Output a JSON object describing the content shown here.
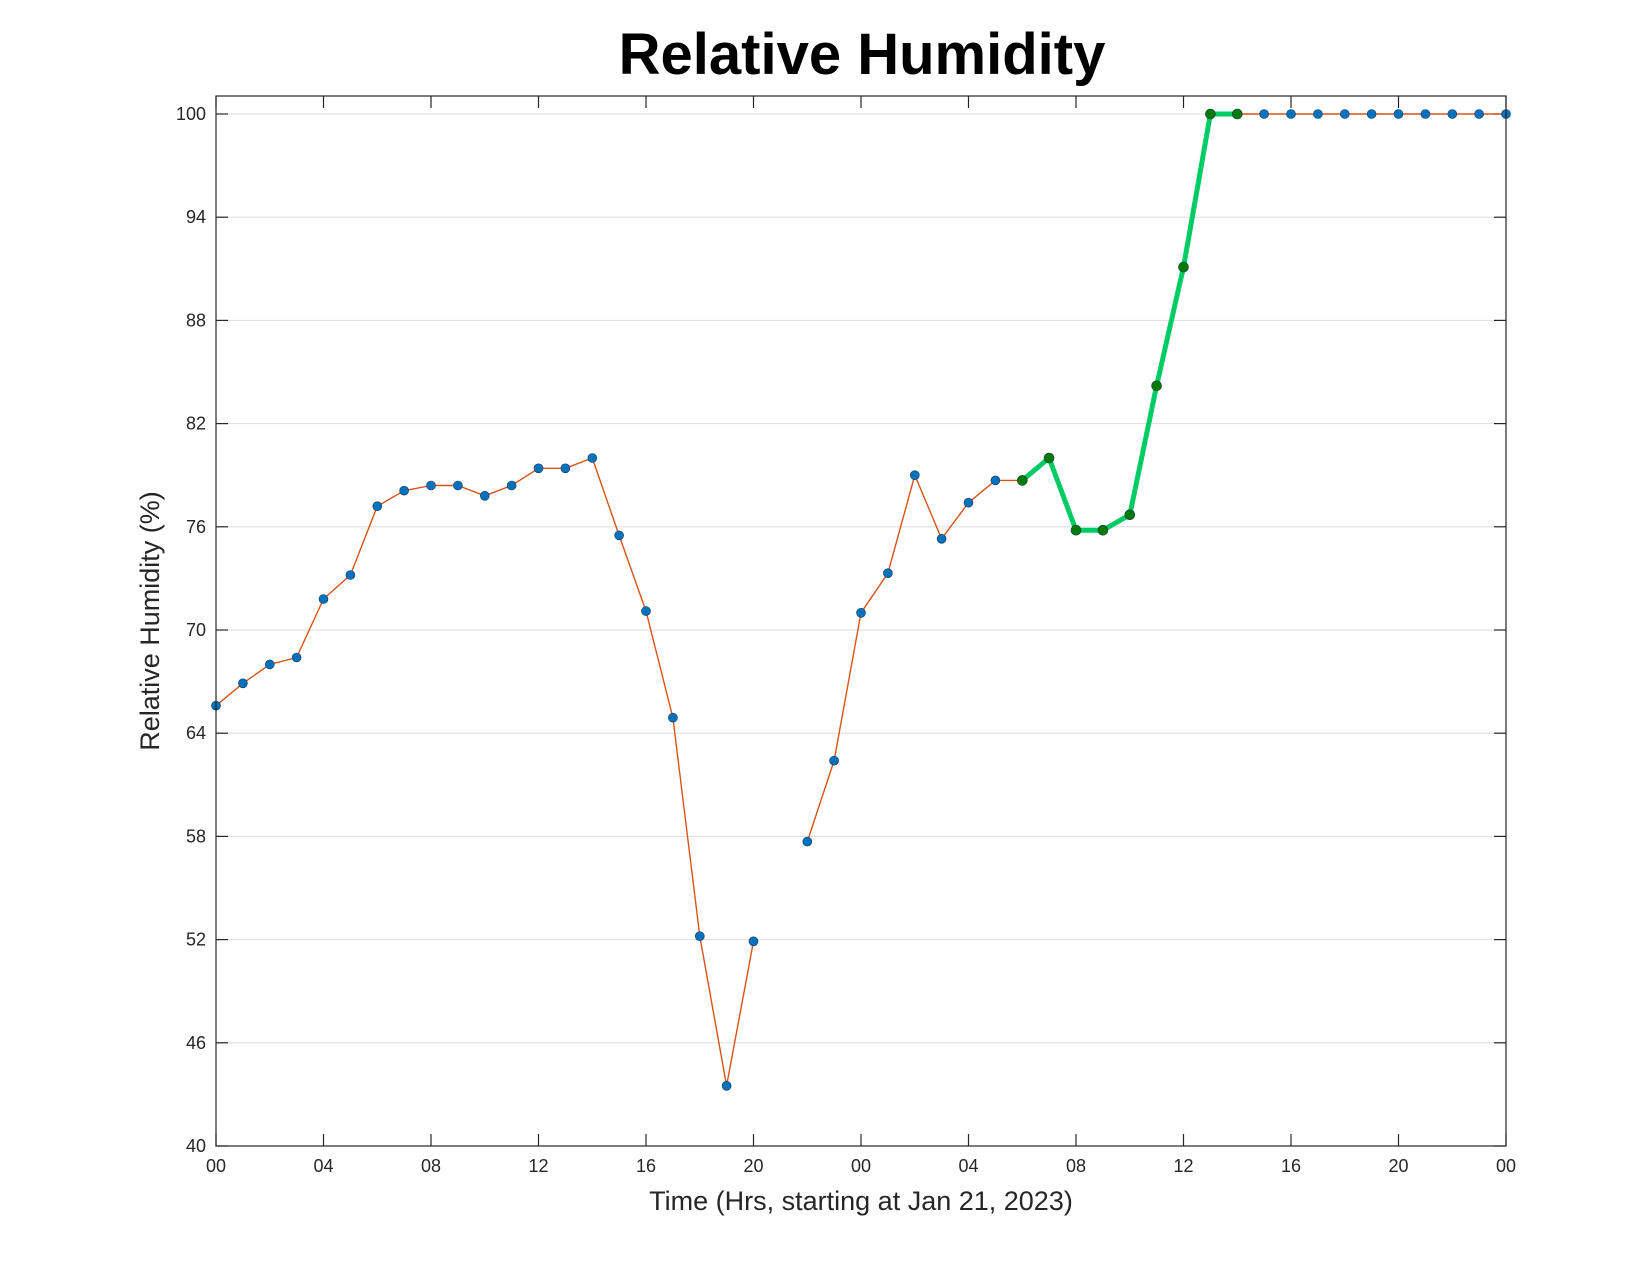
{
  "chart_data": {
    "type": "line",
    "title": "Relative Humidity",
    "xlabel": "Time (Hrs, starting at Jan 21, 2023)",
    "ylabel": "Relative Humidity (%)",
    "xlim": [
      0,
      48
    ],
    "ylim": [
      40,
      100
    ],
    "grid": "horizontal",
    "x_ticks": [
      0,
      4,
      8,
      12,
      16,
      20,
      24,
      28,
      32,
      36,
      40,
      44,
      48
    ],
    "x_tick_labels": [
      "00",
      "04",
      "08",
      "12",
      "16",
      "20",
      "00",
      "04",
      "08",
      "12",
      "16",
      "20",
      "00"
    ],
    "y_ticks": [
      40,
      46,
      52,
      58,
      64,
      70,
      76,
      82,
      88,
      94,
      100
    ],
    "y_tick_labels": [
      "40",
      "46",
      "52",
      "58",
      "64",
      "70",
      "76",
      "82",
      "88",
      "94",
      "100"
    ],
    "x": [
      0,
      1,
      2,
      3,
      4,
      5,
      6,
      7,
      8,
      9,
      10,
      11,
      12,
      13,
      14,
      15,
      16,
      17,
      18,
      19,
      20,
      21,
      22,
      23,
      24,
      25,
      26,
      27,
      28,
      29,
      30,
      31,
      32,
      33,
      34,
      35,
      36,
      37,
      38,
      39,
      40,
      41,
      42,
      43,
      44,
      45,
      46,
      47,
      48
    ],
    "series": [
      {
        "values": [
          65.6,
          66.9,
          68.0,
          68.4,
          71.8,
          73.2,
          77.2,
          78.1,
          78.4,
          78.4,
          77.8,
          78.4,
          79.4,
          79.4,
          80.0,
          75.5,
          71.1,
          64.9,
          52.2,
          43.5,
          51.9,
          null,
          57.7,
          62.4,
          71.0,
          73.3,
          79.0,
          75.3,
          77.4,
          78.7,
          78.7,
          80.0,
          75.8,
          75.8,
          76.7,
          84.2,
          91.1,
          100,
          100,
          100,
          100,
          100,
          100,
          100,
          100,
          100,
          100,
          100,
          100
        ],
        "line_color": "#d95319",
        "marker_color": "#0072bd"
      },
      {
        "x": [
          30,
          31,
          32,
          33,
          34,
          35,
          36,
          37,
          38
        ],
        "values": [
          78.7,
          80.0,
          75.8,
          75.8,
          76.7,
          84.2,
          91.1,
          100,
          100
        ],
        "line_color": "#00cc66",
        "marker_color": "#007a00"
      }
    ]
  }
}
